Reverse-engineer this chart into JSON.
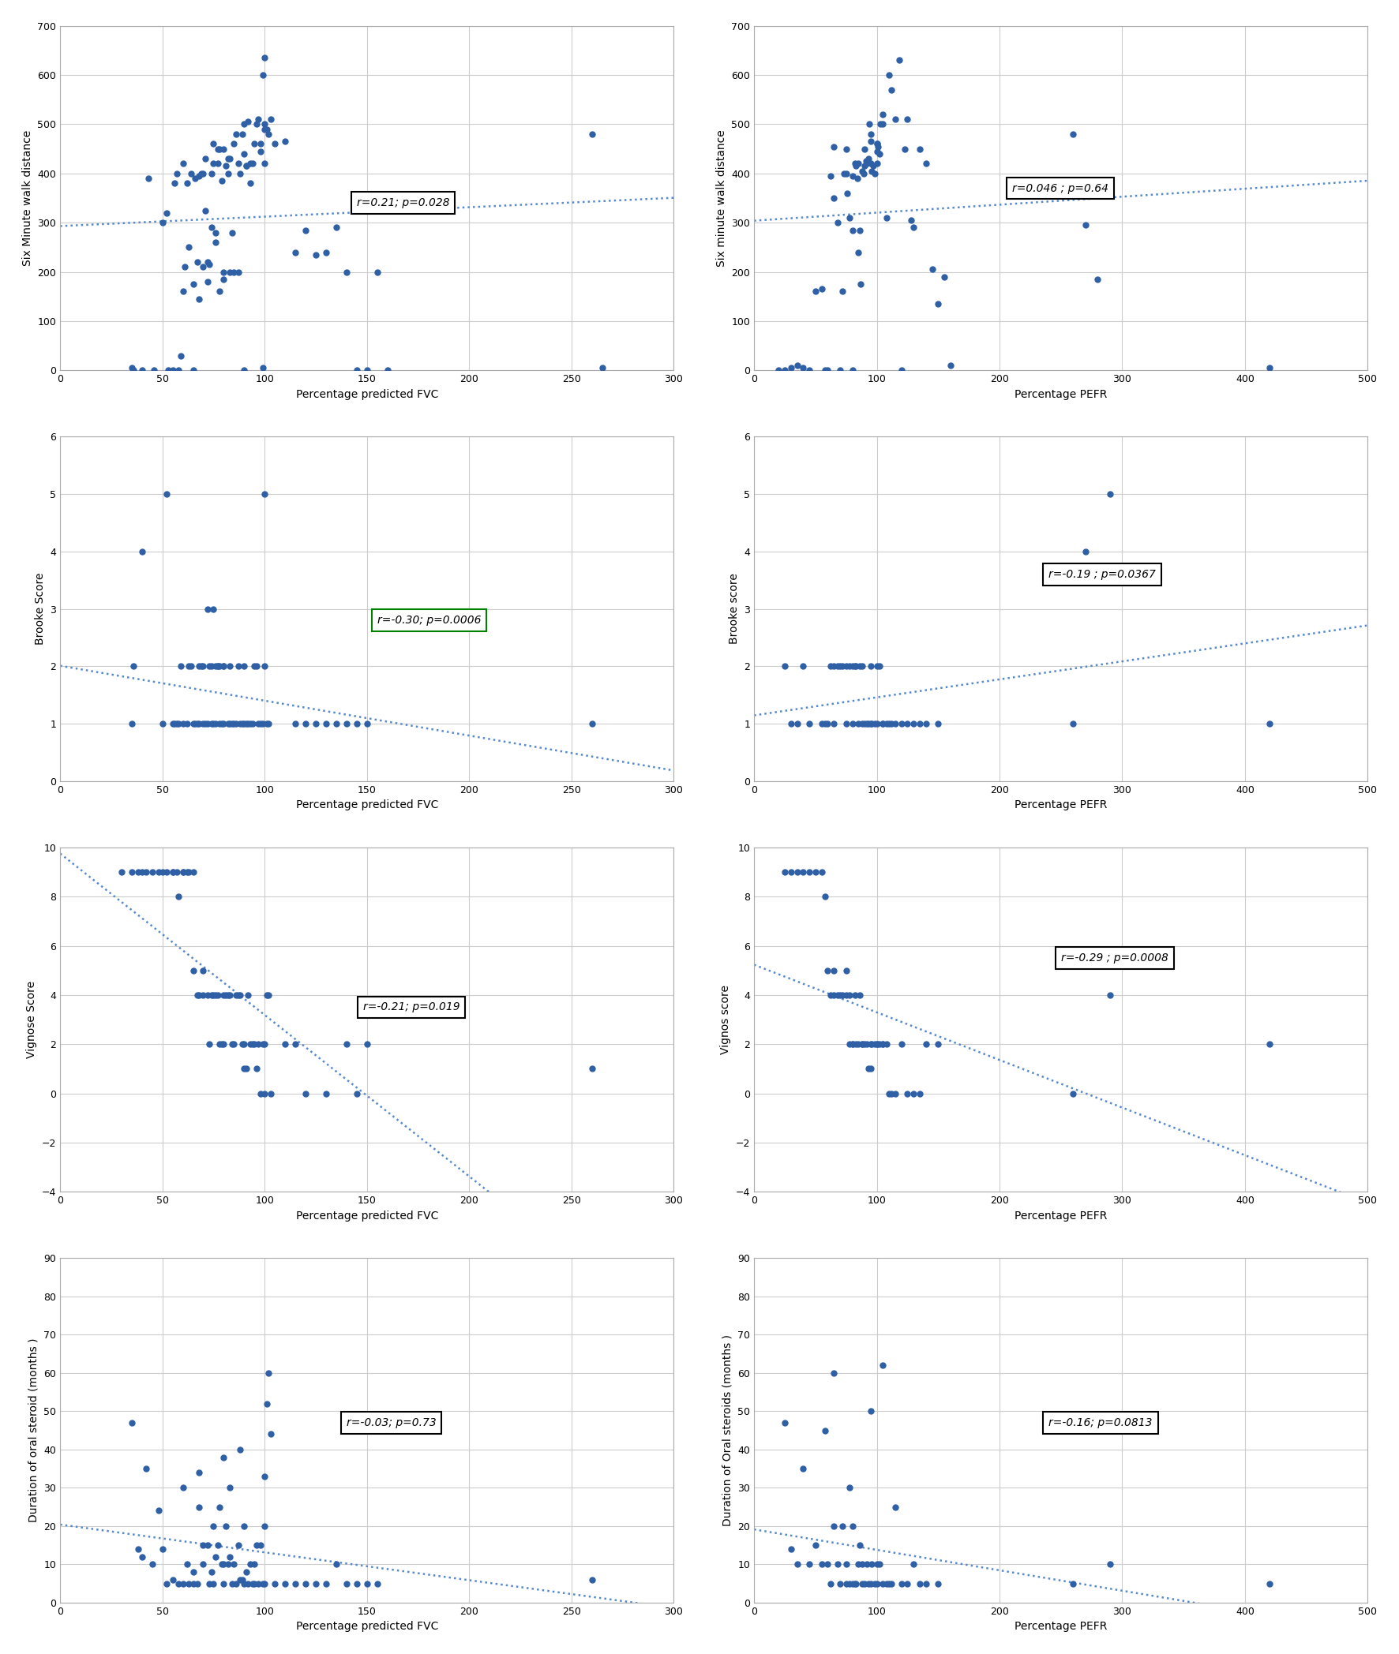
{
  "dot_color": "#2f5fa5",
  "dot_size": 25,
  "line_color": "#5588cc",
  "bg_color": "white",
  "grid_color": "#cccccc",
  "plots": [
    {
      "row": 0,
      "col": 0,
      "xlabel": "Percentage predicted FVC",
      "ylabel": "Six Minute walk distance",
      "xlim": [
        0,
        300
      ],
      "ylim": [
        0,
        700
      ],
      "xticks": [
        0,
        50,
        100,
        150,
        200,
        250,
        300
      ],
      "yticks": [
        0,
        100,
        200,
        300,
        400,
        500,
        600,
        700
      ],
      "annotation": "r=0.21; p=0.028",
      "ann_box_color": "black",
      "ann_x": 145,
      "ann_y": 340,
      "x": [
        35,
        36,
        40,
        43,
        46,
        50,
        52,
        53,
        55,
        56,
        57,
        58,
        59,
        60,
        60,
        61,
        62,
        63,
        64,
        65,
        65,
        66,
        67,
        68,
        68,
        69,
        70,
        70,
        71,
        71,
        72,
        72,
        73,
        74,
        74,
        75,
        75,
        76,
        76,
        77,
        77,
        78,
        78,
        79,
        80,
        80,
        80,
        81,
        82,
        82,
        83,
        83,
        84,
        85,
        85,
        86,
        87,
        87,
        88,
        89,
        90,
        90,
        90,
        91,
        91,
        92,
        93,
        93,
        94,
        95,
        96,
        97,
        98,
        98,
        99,
        99,
        100,
        100,
        100,
        100,
        101,
        102,
        103,
        105,
        110,
        115,
        120,
        125,
        130,
        135,
        140,
        145,
        150,
        155,
        160,
        260,
        265
      ],
      "y": [
        5,
        0,
        0,
        390,
        0,
        300,
        320,
        0,
        0,
        380,
        400,
        0,
        30,
        160,
        420,
        210,
        380,
        250,
        400,
        0,
        175,
        390,
        220,
        395,
        145,
        400,
        400,
        210,
        325,
        430,
        180,
        220,
        215,
        400,
        290,
        420,
        460,
        260,
        280,
        420,
        450,
        160,
        450,
        385,
        450,
        185,
        200,
        415,
        430,
        400,
        200,
        430,
        280,
        200,
        460,
        480,
        200,
        420,
        400,
        480,
        0,
        440,
        500,
        415,
        415,
        505,
        380,
        420,
        420,
        460,
        500,
        510,
        445,
        460,
        5,
        600,
        635,
        500,
        490,
        420,
        490,
        480,
        510,
        460,
        465,
        240,
        285,
        235,
        240,
        290,
        200,
        0,
        0,
        200,
        0,
        480,
        5
      ]
    },
    {
      "row": 0,
      "col": 1,
      "xlabel": "Percentage PEFR",
      "ylabel": "Six minute walk distance",
      "xlim": [
        0,
        500
      ],
      "ylim": [
        0,
        700
      ],
      "xticks": [
        0,
        100,
        200,
        300,
        400,
        500
      ],
      "yticks": [
        0,
        100,
        200,
        300,
        400,
        500,
        600,
        700
      ],
      "annotation": "r=0.046 ; p=0.64",
      "ann_box_color": "black",
      "ann_x": 210,
      "ann_y": 370,
      "x": [
        20,
        25,
        30,
        35,
        40,
        45,
        50,
        55,
        58,
        60,
        62,
        65,
        65,
        68,
        70,
        72,
        73,
        75,
        75,
        76,
        78,
        80,
        80,
        80,
        82,
        83,
        84,
        85,
        85,
        86,
        87,
        88,
        89,
        90,
        90,
        91,
        92,
        93,
        94,
        95,
        95,
        95,
        96,
        97,
        98,
        100,
        100,
        100,
        100,
        101,
        102,
        103,
        105,
        105,
        108,
        110,
        112,
        115,
        118,
        120,
        123,
        125,
        128,
        130,
        135,
        140,
        145,
        150,
        155,
        160,
        260,
        270,
        280,
        420
      ],
      "y": [
        0,
        0,
        5,
        10,
        5,
        0,
        160,
        165,
        0,
        0,
        395,
        350,
        455,
        300,
        0,
        160,
        400,
        400,
        450,
        360,
        310,
        0,
        285,
        395,
        420,
        415,
        390,
        240,
        420,
        285,
        175,
        405,
        400,
        415,
        450,
        425,
        420,
        430,
        500,
        465,
        420,
        480,
        405,
        415,
        400,
        420,
        445,
        460,
        460,
        455,
        440,
        500,
        520,
        500,
        310,
        600,
        570,
        510,
        630,
        0,
        450,
        510,
        305,
        290,
        450,
        420,
        205,
        135,
        190,
        10,
        480,
        295,
        185,
        5
      ]
    },
    {
      "row": 1,
      "col": 0,
      "xlabel": "Percentage predicted FVC",
      "ylabel": "Brooke Score",
      "xlim": [
        0,
        300
      ],
      "ylim": [
        0,
        6
      ],
      "xticks": [
        0,
        50,
        100,
        150,
        200,
        250,
        300
      ],
      "yticks": [
        0,
        1,
        2,
        3,
        4,
        5,
        6
      ],
      "annotation": "r=-0.30; p=0.0006",
      "ann_box_color": "green",
      "ann_x": 155,
      "ann_y": 2.8,
      "x": [
        35,
        36,
        40,
        50,
        52,
        55,
        56,
        57,
        58,
        59,
        60,
        62,
        63,
        64,
        65,
        66,
        67,
        68,
        68,
        69,
        70,
        70,
        71,
        72,
        72,
        73,
        74,
        74,
        75,
        75,
        76,
        76,
        77,
        77,
        78,
        78,
        79,
        80,
        80,
        80,
        82,
        83,
        83,
        84,
        85,
        86,
        87,
        88,
        89,
        90,
        90,
        91,
        92,
        93,
        94,
        95,
        96,
        97,
        98,
        99,
        100,
        100,
        101,
        102,
        115,
        120,
        125,
        130,
        135,
        140,
        145,
        150,
        260
      ],
      "y": [
        1,
        2,
        4,
        1,
        5,
        1,
        1,
        1,
        1,
        2,
        1,
        1,
        2,
        2,
        1,
        1,
        1,
        1,
        2,
        2,
        1,
        2,
        1,
        1,
        3,
        2,
        1,
        2,
        1,
        3,
        2,
        1,
        2,
        2,
        1,
        2,
        1,
        2,
        2,
        1,
        1,
        2,
        1,
        1,
        1,
        1,
        2,
        1,
        1,
        2,
        1,
        1,
        1,
        1,
        1,
        2,
        2,
        1,
        1,
        1,
        2,
        5,
        1,
        1,
        1,
        1,
        1,
        1,
        1,
        1,
        1,
        1,
        1
      ]
    },
    {
      "row": 1,
      "col": 1,
      "xlabel": "Percentage PEFR",
      "ylabel": "Brooke score",
      "xlim": [
        0,
        500
      ],
      "ylim": [
        0,
        6
      ],
      "xticks": [
        0,
        100,
        200,
        300,
        400,
        500
      ],
      "yticks": [
        0,
        1,
        2,
        3,
        4,
        5,
        6
      ],
      "annotation": "r=-0.19 ; p=0.0367",
      "ann_box_color": "black",
      "ann_x": 240,
      "ann_y": 3.6,
      "x": [
        25,
        30,
        35,
        40,
        45,
        55,
        58,
        60,
        62,
        65,
        65,
        68,
        70,
        72,
        75,
        75,
        78,
        80,
        80,
        82,
        83,
        85,
        86,
        88,
        88,
        90,
        92,
        93,
        95,
        95,
        96,
        98,
        100,
        100,
        102,
        105,
        105,
        108,
        110,
        112,
        115,
        120,
        125,
        130,
        135,
        140,
        150,
        260,
        270,
        290,
        420
      ],
      "y": [
        2,
        1,
        1,
        2,
        1,
        1,
        1,
        1,
        2,
        2,
        1,
        2,
        2,
        2,
        2,
        1,
        2,
        2,
        1,
        2,
        2,
        1,
        2,
        2,
        1,
        1,
        1,
        1,
        1,
        2,
        1,
        1,
        2,
        1,
        2,
        1,
        1,
        1,
        1,
        1,
        1,
        1,
        1,
        1,
        1,
        1,
        1,
        1,
        4,
        5,
        1
      ]
    },
    {
      "row": 2,
      "col": 0,
      "xlabel": "Percentage predicted FVC",
      "ylabel": "Vignose Score",
      "xlim": [
        0,
        300
      ],
      "ylim": [
        -4,
        10
      ],
      "xticks": [
        0,
        50,
        100,
        150,
        200,
        250,
        300
      ],
      "yticks": [
        -4,
        -2,
        0,
        2,
        4,
        6,
        8,
        10
      ],
      "annotation": "r=-0.21; p=0.019",
      "ann_box_color": "black",
      "ann_x": 148,
      "ann_y": 3.5,
      "x": [
        30,
        35,
        38,
        40,
        42,
        45,
        48,
        50,
        52,
        55,
        55,
        57,
        58,
        60,
        60,
        62,
        63,
        65,
        65,
        67,
        68,
        70,
        70,
        72,
        73,
        74,
        75,
        76,
        77,
        78,
        79,
        80,
        80,
        81,
        82,
        83,
        84,
        85,
        86,
        87,
        88,
        89,
        90,
        90,
        91,
        92,
        93,
        94,
        95,
        96,
        97,
        98,
        99,
        100,
        100,
        101,
        102,
        103,
        110,
        115,
        120,
        130,
        140,
        145,
        150,
        260
      ],
      "y": [
        9,
        9,
        9,
        9,
        9,
        9,
        9,
        9,
        9,
        9,
        9,
        9,
        8,
        9,
        9,
        9,
        9,
        5,
        9,
        4,
        4,
        5,
        4,
        4,
        2,
        4,
        4,
        4,
        4,
        2,
        2,
        2,
        4,
        4,
        4,
        4,
        2,
        2,
        4,
        4,
        4,
        2,
        2,
        1,
        1,
        4,
        2,
        2,
        2,
        1,
        2,
        0,
        2,
        0,
        2,
        4,
        4,
        0,
        2,
        2,
        0,
        0,
        2,
        0,
        2,
        1
      ]
    },
    {
      "row": 2,
      "col": 1,
      "xlabel": "Percentage PEFR",
      "ylabel": "Vignos score",
      "xlim": [
        0,
        500
      ],
      "ylim": [
        -4,
        10
      ],
      "xticks": [
        0,
        100,
        200,
        300,
        400,
        500
      ],
      "yticks": [
        -4,
        -2,
        0,
        2,
        4,
        6,
        8,
        10
      ],
      "annotation": "r=-0.29 ; p=0.0008",
      "ann_box_color": "black",
      "ann_x": 250,
      "ann_y": 5.5,
      "x": [
        25,
        30,
        35,
        40,
        45,
        50,
        55,
        58,
        60,
        62,
        65,
        65,
        68,
        70,
        72,
        75,
        75,
        78,
        78,
        80,
        80,
        82,
        83,
        85,
        86,
        88,
        88,
        90,
        92,
        93,
        95,
        95,
        96,
        98,
        100,
        100,
        102,
        105,
        105,
        108,
        110,
        112,
        115,
        120,
        125,
        130,
        135,
        140,
        150,
        260,
        290,
        420
      ],
      "y": [
        9,
        9,
        9,
        9,
        9,
        9,
        9,
        8,
        5,
        4,
        4,
        5,
        4,
        4,
        4,
        4,
        5,
        2,
        4,
        2,
        2,
        4,
        2,
        2,
        4,
        2,
        2,
        2,
        2,
        1,
        1,
        2,
        2,
        2,
        2,
        2,
        2,
        2,
        2,
        2,
        0,
        0,
        0,
        2,
        0,
        0,
        0,
        2,
        2,
        0,
        4,
        2
      ]
    },
    {
      "row": 3,
      "col": 0,
      "xlabel": "Percentage predicted FVC",
      "ylabel": "Duration of oral steroid (months )",
      "xlim": [
        0,
        300
      ],
      "ylim": [
        0,
        90
      ],
      "xticks": [
        0,
        50,
        100,
        150,
        200,
        250,
        300
      ],
      "yticks": [
        0,
        10,
        20,
        30,
        40,
        50,
        60,
        70,
        80,
        90
      ],
      "annotation": "r=-0.03; p=0.73",
      "ann_box_color": "black",
      "ann_x": 140,
      "ann_y": 47,
      "x": [
        35,
        38,
        40,
        42,
        45,
        48,
        50,
        52,
        55,
        58,
        60,
        60,
        62,
        63,
        65,
        65,
        67,
        68,
        68,
        70,
        70,
        72,
        73,
        74,
        75,
        75,
        76,
        77,
        78,
        79,
        80,
        80,
        80,
        81,
        82,
        83,
        83,
        84,
        85,
        86,
        87,
        88,
        88,
        89,
        90,
        90,
        91,
        92,
        93,
        94,
        95,
        95,
        96,
        97,
        98,
        99,
        100,
        100,
        100,
        101,
        102,
        103,
        105,
        110,
        115,
        120,
        125,
        130,
        135,
        140,
        145,
        150,
        155,
        260
      ],
      "y": [
        47,
        14,
        12,
        35,
        10,
        24,
        14,
        5,
        6,
        5,
        5,
        30,
        10,
        5,
        8,
        5,
        5,
        25,
        34,
        15,
        10,
        15,
        5,
        8,
        20,
        5,
        12,
        15,
        25,
        10,
        10,
        5,
        38,
        20,
        10,
        30,
        12,
        5,
        10,
        5,
        15,
        6,
        40,
        6,
        5,
        20,
        8,
        5,
        10,
        5,
        10,
        5,
        15,
        5,
        15,
        5,
        20,
        5,
        33,
        52,
        60,
        44,
        5,
        5,
        5,
        5,
        5,
        5,
        10,
        5,
        5,
        5,
        5,
        6
      ]
    },
    {
      "row": 3,
      "col": 1,
      "xlabel": "Percentage PEFR",
      "ylabel": "Duration of Oral steroids (months )",
      "xlim": [
        0,
        500
      ],
      "ylim": [
        0,
        90
      ],
      "xticks": [
        0,
        100,
        200,
        300,
        400,
        500
      ],
      "yticks": [
        0,
        10,
        20,
        30,
        40,
        50,
        60,
        70,
        80,
        90
      ],
      "annotation": "r=-0.16; p=0.0813",
      "ann_box_color": "black",
      "ann_x": 240,
      "ann_y": 47,
      "x": [
        25,
        30,
        35,
        40,
        45,
        50,
        55,
        58,
        60,
        62,
        65,
        65,
        68,
        70,
        72,
        75,
        75,
        78,
        78,
        80,
        80,
        82,
        83,
        85,
        86,
        88,
        88,
        90,
        92,
        93,
        95,
        95,
        96,
        98,
        100,
        100,
        102,
        105,
        105,
        108,
        110,
        112,
        115,
        120,
        125,
        130,
        135,
        140,
        150,
        260,
        290,
        420
      ],
      "y": [
        47,
        14,
        10,
        35,
        10,
        15,
        10,
        45,
        10,
        5,
        20,
        60,
        10,
        5,
        20,
        10,
        5,
        5,
        30,
        5,
        20,
        5,
        5,
        10,
        15,
        10,
        5,
        5,
        10,
        5,
        5,
        50,
        10,
        5,
        10,
        5,
        10,
        5,
        62,
        5,
        5,
        5,
        25,
        5,
        5,
        10,
        5,
        5,
        5,
        5,
        10,
        5
      ]
    }
  ]
}
